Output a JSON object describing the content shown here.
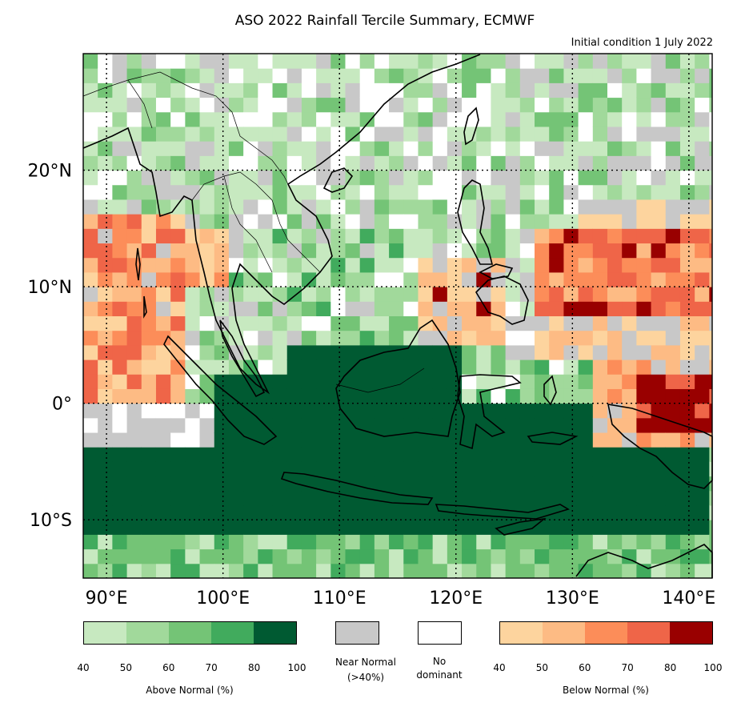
{
  "title": "ASO 2022 Rainfall Tercile Summary, ECMWF",
  "subtitle": "Initial condition 1 July 2022",
  "map": {
    "lon_range": [
      88,
      142
    ],
    "lat_range": [
      -15,
      30
    ],
    "lat_labels": [
      "20°N",
      "10°N",
      "0°",
      "10°S"
    ],
    "lon_labels": [
      "90°E",
      "100°E",
      "110°E",
      "120°E",
      "130°E",
      "140°E"
    ],
    "gridlines": "dotted"
  },
  "legend": {
    "above_normal": {
      "title": "Above Normal (%)",
      "ticks": [
        "40",
        "50",
        "60",
        "70",
        "80",
        "100"
      ],
      "colors": [
        "#c7e9c0",
        "#a1d99b",
        "#74c476",
        "#41ab5d",
        "#005a32"
      ]
    },
    "near_normal": {
      "label": "Near Normal\n(>40%)",
      "color": "#c8c8c8"
    },
    "no_dominant": {
      "label": "No\ndominant",
      "color": "#ffffff"
    },
    "below_normal": {
      "title": "Below Normal (%)",
      "ticks": [
        "40",
        "50",
        "60",
        "70",
        "80",
        "100"
      ],
      "colors": [
        "#fdd49e",
        "#fdbb84",
        "#fc8d59",
        "#ef6548",
        "#990000"
      ]
    }
  }
}
